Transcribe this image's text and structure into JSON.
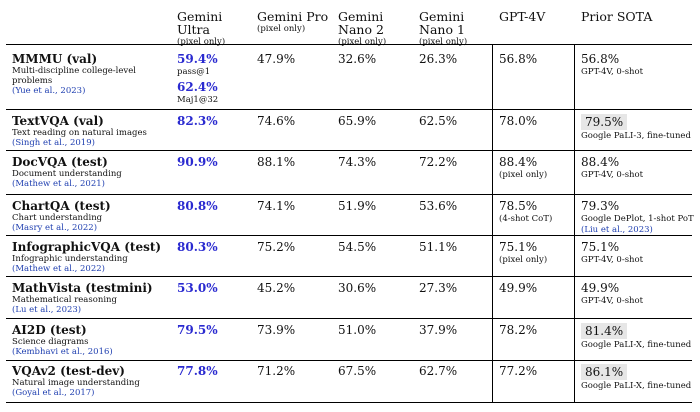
{
  "headers": {
    "ultra": {
      "name": "Gemini Ultra",
      "sub": "(pixel only)"
    },
    "pro": {
      "name": "Gemini Pro",
      "sub": "(pixel only)"
    },
    "nano2": {
      "name": "Gemini Nano 2",
      "sub": "(pixel only)"
    },
    "nano1": {
      "name": "Gemini Nano 1",
      "sub": "(pixel only)"
    },
    "gpt4v": {
      "name": "GPT-4V",
      "sub": ""
    },
    "sota": {
      "name": "Prior SOTA",
      "sub": ""
    }
  },
  "rows": [
    {
      "bench": "MMMU (val)",
      "desc": "Multi-discipline college-level problems",
      "cite": "(Yue et al., 2023)",
      "ultra": "59.4%",
      "ultra_note": "pass@1",
      "ultra2": "62.4%",
      "ultra2_note": "Maj1@32",
      "pro": "47.9%",
      "nano2": "32.6%",
      "nano1": "26.3%",
      "gpt4v": "56.8%",
      "gpt4v_note": "",
      "sota": "56.8%",
      "sota_note": "GPT-4V, 0-shot",
      "sota_note2": "",
      "sota_hl": false
    },
    {
      "bench": "TextVQA (val)",
      "desc": "Text reading on natural images",
      "cite": "(Singh et al., 2019)",
      "ultra": "82.3%",
      "pro": "74.6%",
      "nano2": "65.9%",
      "nano1": "62.5%",
      "gpt4v": "78.0%",
      "gpt4v_note": "",
      "sota": "79.5%",
      "sota_note": "Google PaLI-3, fine-tuned",
      "sota_note2": "",
      "sota_hl": true
    },
    {
      "bench": "DocVQA (test)",
      "desc": "Document understanding",
      "cite": "(Mathew et al., 2021)",
      "ultra": "90.9%",
      "pro": "88.1%",
      "nano2": "74.3%",
      "nano1": "72.2%",
      "gpt4v": "88.4%",
      "gpt4v_note": "(pixel only)",
      "sota": "88.4%",
      "sota_note": "GPT-4V, 0-shot",
      "sota_note2": "",
      "sota_hl": false
    },
    {
      "bench": "ChartQA (test)",
      "desc": "Chart understanding",
      "cite": "(Masry et al., 2022)",
      "ultra": "80.8%",
      "pro": "74.1%",
      "nano2": "51.9%",
      "nano1": "53.6%",
      "gpt4v": "78.5%",
      "gpt4v_note": "(4-shot CoT)",
      "sota": "79.3%",
      "sota_note": "Google DePlot, 1-shot PoT",
      "sota_note2": "(Liu et al., 2023)",
      "sota_hl": false
    },
    {
      "bench": "InfographicVQA (test)",
      "desc": "Infographic understanding",
      "cite": "(Mathew et al., 2022)",
      "ultra": "80.3%",
      "pro": "75.2%",
      "nano2": "54.5%",
      "nano1": "51.1%",
      "gpt4v": "75.1%",
      "gpt4v_note": "(pixel only)",
      "sota": "75.1%",
      "sota_note": "GPT-4V, 0-shot",
      "sota_note2": "",
      "sota_hl": false
    },
    {
      "bench": "MathVista (testmini)",
      "desc": "Mathematical reasoning",
      "cite": "(Lu et al., 2023)",
      "ultra": "53.0%",
      "pro": "45.2%",
      "nano2": "30.6%",
      "nano1": "27.3%",
      "gpt4v": "49.9%",
      "gpt4v_note": "",
      "sota": "49.9%",
      "sota_note": "GPT-4V, 0-shot",
      "sota_note2": "",
      "sota_hl": false
    },
    {
      "bench": "AI2D (test)",
      "desc": "Science diagrams",
      "cite": "(Kembhavi et al., 2016)",
      "ultra": "79.5%",
      "pro": "73.9%",
      "nano2": "51.0%",
      "nano1": "37.9%",
      "gpt4v": "78.2%",
      "gpt4v_note": "",
      "sota": "81.4%",
      "sota_note": "Google PaLI-X, fine-tuned",
      "sota_note2": "",
      "sota_hl": true
    },
    {
      "bench": "VQAv2 (test-dev)",
      "desc": "Natural image understanding",
      "cite": "(Goyal et al., 2017)",
      "ultra": "77.8%",
      "pro": "71.2%",
      "nano2": "67.5%",
      "nano1": "62.7%",
      "gpt4v": "77.2%",
      "gpt4v_note": "",
      "sota": "86.1%",
      "sota_note": "Google PaLI-X, fine-tuned",
      "sota_note2": "",
      "sota_hl": true
    }
  ]
}
